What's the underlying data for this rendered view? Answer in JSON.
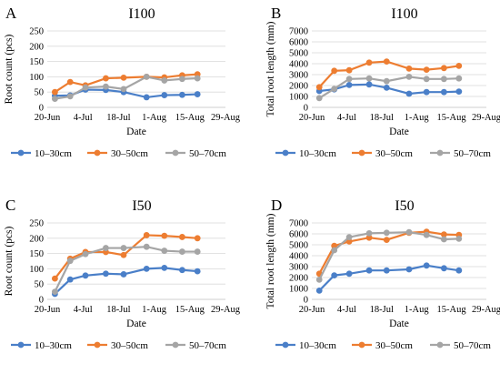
{
  "colors": {
    "s1": "#4a7fc8",
    "s2": "#ed7d31",
    "s3": "#a5a5a5"
  },
  "x_ticks": [
    "20-Jun",
    "4-Jul",
    "18-Jul",
    "1-Aug",
    "15-Aug",
    "29-Aug"
  ],
  "chart_data": [
    {
      "panel": "A",
      "title": "I100",
      "type": "line",
      "xlabel": "Date",
      "ylabel": "Root count (pcs)",
      "ylim": [
        0,
        250
      ],
      "yticks": [
        0,
        50,
        100,
        150,
        200,
        250
      ],
      "x": [
        "23-Jun",
        "29-Jun",
        "5-Jul",
        "13-Jul",
        "20-Jul",
        "29-Jul",
        "5-Aug",
        "12-Aug",
        "18-Aug"
      ],
      "series": [
        {
          "name": "10–30cm",
          "values": [
            38,
            39,
            58,
            57,
            50,
            33,
            40,
            41,
            43
          ]
        },
        {
          "name": "30–50cm",
          "values": [
            50,
            83,
            72,
            95,
            97,
            100,
            98,
            105,
            108
          ]
        },
        {
          "name": "50–70cm",
          "values": [
            28,
            36,
            65,
            68,
            60,
            100,
            88,
            93,
            95
          ]
        }
      ],
      "legend": "bottom"
    },
    {
      "panel": "B",
      "title": "I100",
      "type": "line",
      "xlabel": "Date",
      "ylabel": "Total root length (mm)",
      "ylim": [
        0,
        7000
      ],
      "yticks": [
        0,
        1000,
        2000,
        3000,
        4000,
        5000,
        6000,
        7000
      ],
      "x": [
        "23-Jun",
        "29-Jun",
        "5-Jul",
        "13-Jul",
        "20-Jul",
        "29-Jul",
        "5-Aug",
        "12-Aug",
        "18-Aug"
      ],
      "series": [
        {
          "name": "10–30cm",
          "values": [
            1500,
            1650,
            2050,
            2100,
            1800,
            1250,
            1400,
            1400,
            1450
          ]
        },
        {
          "name": "30–50cm",
          "values": [
            1850,
            3350,
            3400,
            4100,
            4200,
            3550,
            3450,
            3600,
            3800
          ]
        },
        {
          "name": "50–70cm",
          "values": [
            850,
            1700,
            2600,
            2650,
            2400,
            2800,
            2600,
            2600,
            2650
          ]
        }
      ],
      "legend": "bottom"
    },
    {
      "panel": "C",
      "title": "I50",
      "type": "line",
      "xlabel": "Date",
      "ylabel": "Root count (pcs)",
      "ylim": [
        0,
        250
      ],
      "yticks": [
        0,
        50,
        100,
        150,
        200,
        250
      ],
      "x": [
        "23-Jun",
        "29-Jun",
        "5-Jul",
        "13-Jul",
        "20-Jul",
        "29-Jul",
        "5-Aug",
        "12-Aug",
        "18-Aug"
      ],
      "series": [
        {
          "name": "10–30cm",
          "values": [
            18,
            65,
            78,
            84,
            82,
            100,
            103,
            96,
            92
          ]
        },
        {
          "name": "30–50cm",
          "values": [
            68,
            133,
            155,
            155,
            145,
            210,
            208,
            204,
            200
          ]
        },
        {
          "name": "50–70cm",
          "values": [
            25,
            126,
            148,
            168,
            168,
            172,
            159,
            156,
            156
          ]
        }
      ],
      "legend": "bottom"
    },
    {
      "panel": "D",
      "title": "I50",
      "type": "line",
      "xlabel": "Date",
      "ylabel": "Total root length (mm)",
      "ylim": [
        0,
        7000
      ],
      "yticks": [
        0,
        1000,
        2000,
        3000,
        4000,
        5000,
        6000,
        7000
      ],
      "x": [
        "23-Jun",
        "29-Jun",
        "5-Jul",
        "13-Jul",
        "20-Jul",
        "29-Jul",
        "5-Aug",
        "12-Aug",
        "18-Aug"
      ],
      "series": [
        {
          "name": "10–30cm",
          "values": [
            800,
            2200,
            2350,
            2650,
            2650,
            2750,
            3100,
            2850,
            2650
          ]
        },
        {
          "name": "30–50cm",
          "values": [
            2350,
            4900,
            5300,
            5650,
            5450,
            6100,
            6200,
            5950,
            5900
          ]
        },
        {
          "name": "50–70cm",
          "values": [
            1800,
            4500,
            5700,
            6050,
            6100,
            6150,
            5900,
            5500,
            5550
          ]
        }
      ],
      "legend": "bottom"
    }
  ]
}
